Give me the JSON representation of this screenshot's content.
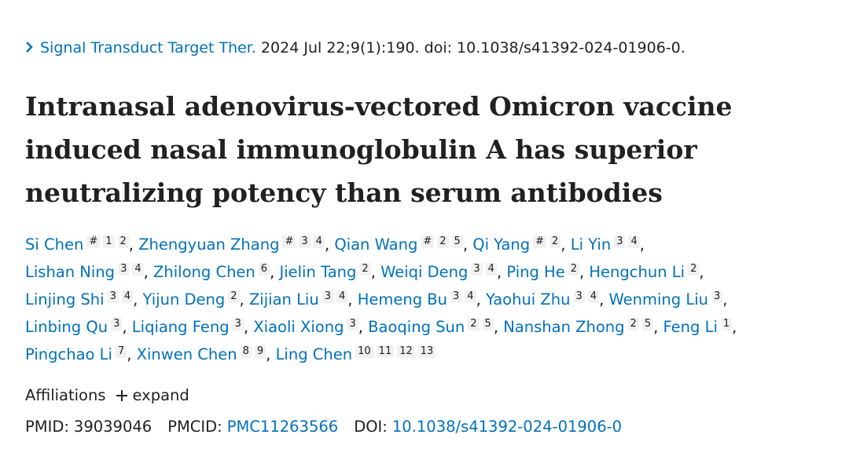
{
  "citation": {
    "journal": "Signal Transduct Target Ther.",
    "details": "2024 Jul 22;9(1):190. doi: 10.1038/s41392-024-01906-0."
  },
  "title": "Intranasal adenovirus-vectored Omicron vaccine induced nasal immunoglobulin A has superior neutralizing potency than serum antibodies",
  "author_separator": ",",
  "author_lines": [
    [
      {
        "name": "Si Chen",
        "marks": [
          "#",
          "1",
          "2"
        ]
      },
      {
        "name": "Zhengyuan Zhang",
        "marks": [
          "#",
          "3",
          "4"
        ]
      },
      {
        "name": "Qian Wang",
        "marks": [
          "#",
          "2",
          "5"
        ]
      },
      {
        "name": "Qi Yang",
        "marks": [
          "#",
          "2"
        ]
      },
      {
        "name": "Li Yin",
        "marks": [
          "3",
          "4"
        ]
      }
    ],
    [
      {
        "name": "Lishan Ning",
        "marks": [
          "3",
          "4"
        ]
      },
      {
        "name": "Zhilong Chen",
        "marks": [
          "6"
        ]
      },
      {
        "name": "Jielin Tang",
        "marks": [
          "2"
        ]
      },
      {
        "name": "Weiqi Deng",
        "marks": [
          "3",
          "4"
        ]
      },
      {
        "name": "Ping He",
        "marks": [
          "2"
        ]
      },
      {
        "name": "Hengchun Li",
        "marks": [
          "2"
        ]
      }
    ],
    [
      {
        "name": "Linjing Shi",
        "marks": [
          "3",
          "4"
        ]
      },
      {
        "name": "Yijun Deng",
        "marks": [
          "2"
        ]
      },
      {
        "name": "Zijian Liu",
        "marks": [
          "3",
          "4"
        ]
      },
      {
        "name": "Hemeng Bu",
        "marks": [
          "3",
          "4"
        ]
      },
      {
        "name": "Yaohui Zhu",
        "marks": [
          "3",
          "4"
        ]
      },
      {
        "name": "Wenming Liu",
        "marks": [
          "3"
        ]
      }
    ],
    [
      {
        "name": "Linbing Qu",
        "marks": [
          "3"
        ]
      },
      {
        "name": "Liqiang Feng",
        "marks": [
          "3"
        ]
      },
      {
        "name": "Xiaoli Xiong",
        "marks": [
          "3"
        ]
      },
      {
        "name": "Baoqing Sun",
        "marks": [
          "2",
          "5"
        ]
      },
      {
        "name": "Nanshan Zhong",
        "marks": [
          "2",
          "5"
        ]
      },
      {
        "name": "Feng Li",
        "marks": [
          "1"
        ]
      }
    ],
    [
      {
        "name": "Pingchao Li",
        "marks": [
          "7"
        ]
      },
      {
        "name": "Xinwen Chen",
        "marks": [
          "8",
          "9"
        ]
      },
      {
        "name": "Ling Chen",
        "marks": [
          "10",
          "11",
          "12",
          "13"
        ]
      }
    ]
  ],
  "affiliations": {
    "label": "Affiliations",
    "action": "expand"
  },
  "identifiers": [
    {
      "label": "PMID:",
      "value": "39039046"
    },
    {
      "label": "PMCID:",
      "value": "PMC11263566"
    },
    {
      "label": "DOI:",
      "value": "10.1038/s41392-024-01906-0"
    }
  ]
}
